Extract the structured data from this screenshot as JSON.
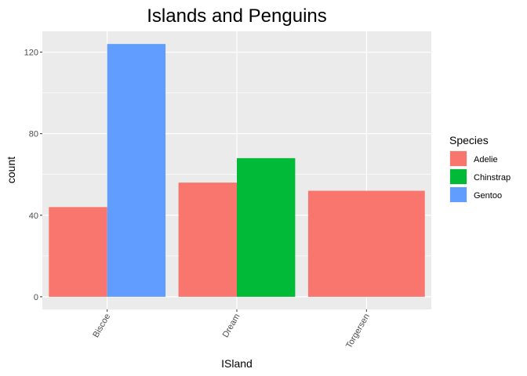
{
  "chart_data": {
    "type": "bar",
    "title": "Islands and Penguins",
    "xlabel": "ISland",
    "ylabel": "count",
    "categories": [
      "Biscoe",
      "Dream",
      "Torgersen"
    ],
    "series": [
      {
        "name": "Adelie",
        "color": "#F8766D",
        "values": [
          44,
          56,
          52
        ]
      },
      {
        "name": "Chinstrap",
        "color": "#00BA38",
        "values": [
          0,
          68,
          0
        ]
      },
      {
        "name": "Gentoo",
        "color": "#619CFF",
        "values": [
          124,
          0,
          0
        ]
      }
    ],
    "yticks": [
      0,
      40,
      80,
      120
    ],
    "ylim": [
      -6.2,
      130.2
    ],
    "grid": true,
    "panel_background": "#EBEBEB",
    "legend": {
      "title": "Species",
      "placement": "right"
    }
  }
}
